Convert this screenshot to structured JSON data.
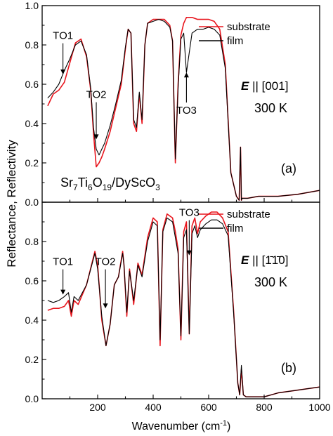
{
  "figure": {
    "ylabel": "Reflectance, Reflectivity",
    "xlabel_base": "Wavenumber (cm",
    "xlabel_sup": "-1",
    "xlabel_end": ")"
  },
  "chart_data": [
    {
      "type": "line",
      "panel_label": "(a)",
      "xlim": [
        0,
        1000
      ],
      "ylim": [
        0.0,
        1.0
      ],
      "yticks": [
        "0.0",
        "0.2",
        "0.4",
        "0.6",
        "0.8",
        "1.0"
      ],
      "xticks": [],
      "polarization_prefix": "E",
      "polarization_sep": " || ",
      "polarization_value": "[001]",
      "temperature": "300 K",
      "sample_parts": [
        "Sr",
        "7",
        "Ti",
        "6",
        "O",
        "19",
        "/DySc",
        "O",
        "3"
      ],
      "legend": {
        "position": "top-right",
        "entries": [
          "substrate",
          "film"
        ]
      },
      "annotations": [
        {
          "text": "TO1",
          "x": 75,
          "y": 0.83,
          "arrow_to": 0.65
        },
        {
          "text": "TO2",
          "x": 195,
          "y": 0.53,
          "arrow_to": 0.32
        },
        {
          "text": "TO3",
          "x": 520,
          "y": 0.45,
          "arrow_to": 0.66
        }
      ],
      "series": [
        {
          "name": "substrate",
          "color": "#e8141c",
          "x": [
            20,
            40,
            60,
            80,
            100,
            120,
            140,
            160,
            175,
            185,
            195,
            205,
            215,
            225,
            245,
            265,
            285,
            300,
            310,
            320,
            330,
            340,
            350,
            360,
            370,
            380,
            400,
            420,
            440,
            460,
            470,
            480,
            490,
            500,
            510,
            520,
            540,
            560,
            580,
            600,
            620,
            640,
            660,
            680,
            700,
            710,
            715,
            718,
            720,
            740,
            780,
            850,
            920,
            1000
          ],
          "y": [
            0.49,
            0.55,
            0.57,
            0.61,
            0.71,
            0.81,
            0.83,
            0.74,
            0.57,
            0.35,
            0.18,
            0.2,
            0.23,
            0.27,
            0.36,
            0.48,
            0.6,
            0.78,
            0.88,
            0.86,
            0.4,
            0.36,
            0.55,
            0.4,
            0.8,
            0.91,
            0.93,
            0.93,
            0.93,
            0.9,
            0.82,
            0.2,
            0.6,
            0.85,
            0.91,
            0.94,
            0.94,
            0.93,
            0.93,
            0.93,
            0.92,
            0.88,
            0.7,
            0.15,
            0.03,
            0.01,
            0.28,
            0.01,
            0.02,
            0.02,
            0.03,
            0.03,
            0.04,
            0.06
          ]
        },
        {
          "name": "film",
          "color": "#000000",
          "x": [
            20,
            40,
            60,
            80,
            100,
            120,
            140,
            160,
            175,
            185,
            195,
            205,
            215,
            225,
            245,
            265,
            285,
            300,
            310,
            320,
            330,
            340,
            350,
            360,
            370,
            380,
            400,
            420,
            440,
            460,
            470,
            480,
            490,
            500,
            510,
            520,
            540,
            560,
            580,
            600,
            620,
            640,
            660,
            680,
            700,
            710,
            715,
            718,
            720,
            740,
            780,
            850,
            920,
            1000
          ],
          "y": [
            0.53,
            0.56,
            0.6,
            0.67,
            0.73,
            0.8,
            0.82,
            0.75,
            0.58,
            0.38,
            0.27,
            0.24,
            0.27,
            0.3,
            0.39,
            0.5,
            0.62,
            0.79,
            0.88,
            0.86,
            0.42,
            0.38,
            0.56,
            0.42,
            0.8,
            0.91,
            0.92,
            0.93,
            0.92,
            0.89,
            0.82,
            0.22,
            0.58,
            0.83,
            0.86,
            0.66,
            0.86,
            0.88,
            0.88,
            0.89,
            0.88,
            0.85,
            0.68,
            0.15,
            0.03,
            0.01,
            0.28,
            0.01,
            0.02,
            0.02,
            0.03,
            0.03,
            0.04,
            0.06
          ]
        }
      ]
    },
    {
      "type": "line",
      "panel_label": "(b)",
      "xlim": [
        0,
        1000
      ],
      "ylim": [
        0.0,
        1.0
      ],
      "yticks": [
        "0.0",
        "0.2",
        "0.4",
        "0.6",
        "0.8",
        ""
      ],
      "xticks": [
        "200",
        "400",
        "600",
        "800",
        "1000"
      ],
      "polarization_prefix": "E",
      "polarization_sep": " || ",
      "polarization_value": "[1̄1̄0]",
      "temperature": "300 K",
      "legend": {
        "position": "top-right",
        "entries": [
          "substrate",
          "film"
        ]
      },
      "annotations": [
        {
          "text": "TO1",
          "x": 75,
          "y": 0.68,
          "arrow_to": 0.53
        },
        {
          "text": "TO2",
          "x": 228,
          "y": 0.68,
          "arrow_to": 0.46
        },
        {
          "text": "TO3",
          "x": 530,
          "y": 0.93,
          "arrow_to": 0.73
        }
      ],
      "series": [
        {
          "name": "substrate",
          "color": "#e8141c",
          "x": [
            20,
            40,
            60,
            80,
            95,
            105,
            115,
            130,
            160,
            190,
            200,
            215,
            230,
            245,
            260,
            275,
            290,
            295,
            305,
            315,
            330,
            345,
            360,
            380,
            400,
            415,
            425,
            435,
            450,
            470,
            480,
            490,
            500,
            510,
            520,
            530,
            540,
            550,
            560,
            570,
            590,
            610,
            630,
            650,
            670,
            690,
            705,
            712,
            718,
            725,
            735,
            760,
            800,
            850,
            900,
            1000
          ],
          "y": [
            0.45,
            0.46,
            0.46,
            0.47,
            0.5,
            0.42,
            0.5,
            0.48,
            0.58,
            0.75,
            0.68,
            0.4,
            0.27,
            0.38,
            0.58,
            0.62,
            0.75,
            0.68,
            0.42,
            0.66,
            0.48,
            0.69,
            0.63,
            0.82,
            0.92,
            0.9,
            0.27,
            0.86,
            0.94,
            0.92,
            0.85,
            0.76,
            0.3,
            0.85,
            0.9,
            0.33,
            0.88,
            0.92,
            0.84,
            0.9,
            0.93,
            0.95,
            0.95,
            0.92,
            0.85,
            0.45,
            0.08,
            0.02,
            0.15,
            0.02,
            0.01,
            0.01,
            0.01,
            0.03,
            0.04,
            0.06
          ]
        },
        {
          "name": "film",
          "color": "#000000",
          "x": [
            20,
            40,
            60,
            80,
            95,
            105,
            115,
            130,
            160,
            190,
            200,
            215,
            230,
            245,
            260,
            275,
            290,
            295,
            305,
            315,
            330,
            345,
            360,
            380,
            400,
            415,
            425,
            435,
            450,
            470,
            480,
            490,
            500,
            510,
            520,
            530,
            540,
            550,
            560,
            570,
            590,
            610,
            630,
            650,
            670,
            690,
            705,
            712,
            718,
            725,
            735,
            760,
            800,
            850,
            900,
            1000
          ],
          "y": [
            0.5,
            0.49,
            0.5,
            0.52,
            0.54,
            0.44,
            0.52,
            0.5,
            0.58,
            0.74,
            0.66,
            0.42,
            0.27,
            0.38,
            0.58,
            0.62,
            0.74,
            0.68,
            0.44,
            0.65,
            0.5,
            0.68,
            0.62,
            0.8,
            0.9,
            0.88,
            0.3,
            0.85,
            0.92,
            0.9,
            0.82,
            0.74,
            0.32,
            0.82,
            0.86,
            0.33,
            0.84,
            0.88,
            0.82,
            0.86,
            0.89,
            0.91,
            0.91,
            0.89,
            0.83,
            0.44,
            0.08,
            0.02,
            0.17,
            0.02,
            0.01,
            0.01,
            0.01,
            0.03,
            0.04,
            0.06
          ]
        }
      ]
    }
  ]
}
